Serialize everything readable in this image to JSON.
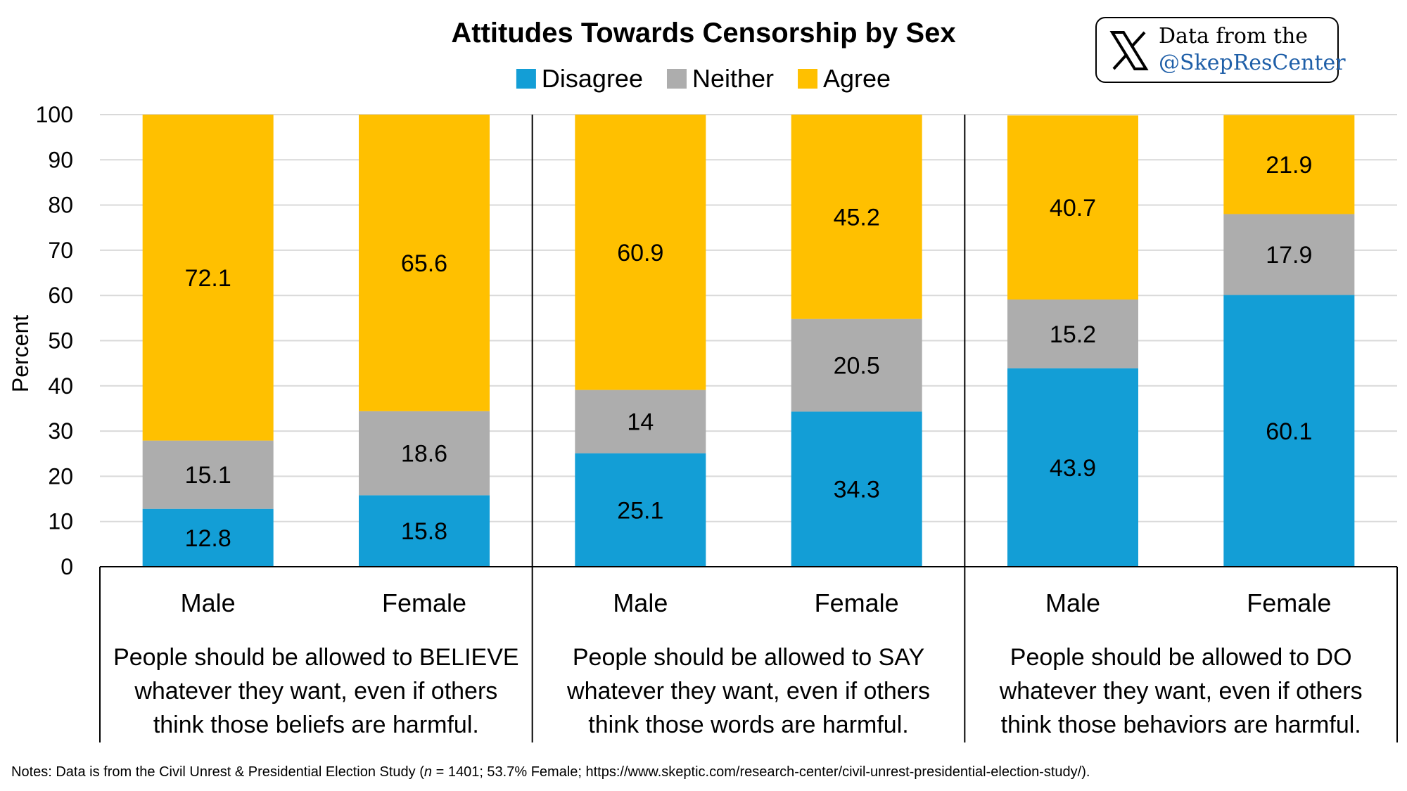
{
  "chart_data": {
    "type": "bar",
    "stacked": true,
    "title": "Attitudes Towards Censorship by Sex",
    "ylabel": "Percent",
    "ylim": [
      0,
      100
    ],
    "yticks": [
      "0",
      "10",
      "20",
      "30",
      "40",
      "50",
      "60",
      "70",
      "80",
      "90",
      "100"
    ],
    "grid": true,
    "legend_position": "top",
    "groups": [
      {
        "label": "People should be allowed to BELIEVE whatever they want, even if others think those beliefs are harmful.",
        "label_lines": [
          "People should be allowed to BELIEVE",
          "whatever they want, even if others",
          "think those beliefs are harmful."
        ],
        "categories": [
          "Male",
          "Female"
        ]
      },
      {
        "label": "People should be allowed to SAY whatever they want, even if others think those words are harmful.",
        "label_lines": [
          "People should be allowed to SAY",
          "whatever they want, even if others",
          "think those words are harmful."
        ],
        "categories": [
          "Male",
          "Female"
        ]
      },
      {
        "label": "People should be allowed to DO whatever they want, even if others think those behaviors are harmful.",
        "label_lines": [
          "People should be allowed to DO",
          "whatever they want, even if others",
          "think those behaviors are harmful."
        ],
        "categories": [
          "Male",
          "Female"
        ]
      }
    ],
    "series": [
      {
        "name": "Disagree",
        "color": "#139ed6",
        "values": [
          12.8,
          15.8,
          25.1,
          34.3,
          43.9,
          60.1
        ],
        "labels": [
          "12.8",
          "15.8",
          "25.1",
          "34.3",
          "43.9",
          "60.1"
        ]
      },
      {
        "name": "Neither",
        "color": "#adadad",
        "values": [
          15.1,
          18.6,
          14,
          20.5,
          15.2,
          17.9
        ],
        "labels": [
          "15.1",
          "18.6",
          "14",
          "20.5",
          "15.2",
          "17.9"
        ]
      },
      {
        "name": "Agree",
        "color": "#ffc000",
        "values": [
          72.1,
          65.6,
          60.9,
          45.2,
          40.7,
          21.9
        ],
        "labels": [
          "72.1",
          "65.6",
          "60.9",
          "45.2",
          "40.7",
          "21.9"
        ]
      }
    ]
  },
  "badge": {
    "line1": "Data from the",
    "line2": "@SkepResCenter",
    "icon": "x-logo-icon",
    "link_color": "#1f5fa8"
  },
  "notes": {
    "prefix": "Notes: Data is from the Civil Unrest & Presidential Election Study (",
    "n_label": "n",
    "suffix": " = 1401; 53.7% Female; https://www.skeptic.com/research-center/civil-unrest-presidential-election-study/)."
  }
}
